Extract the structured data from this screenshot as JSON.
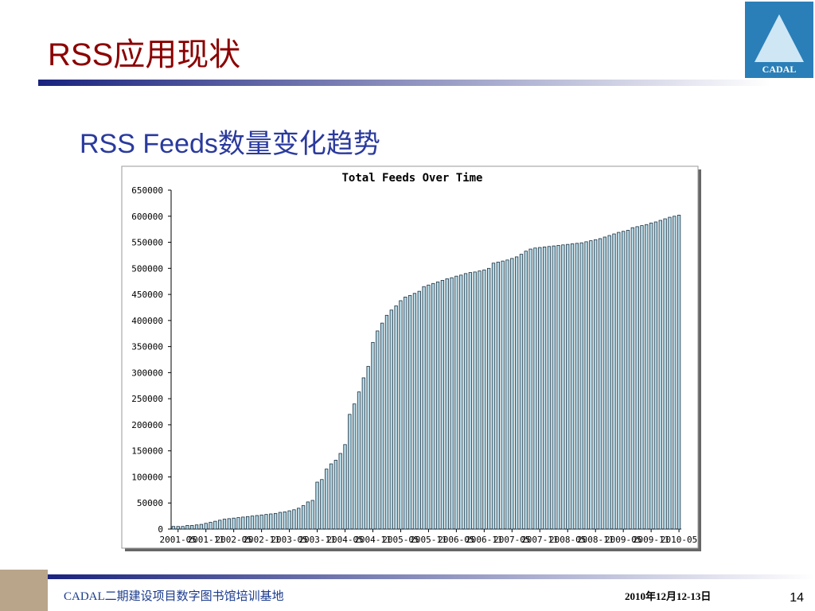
{
  "slide": {
    "title": "RSS应用现状",
    "subtitle": "RSS Feeds数量变化趋势",
    "logo": "CADAL",
    "footer": "CADAL二期建设项目数字图书馆培训基地",
    "date": "2010年12月12-13日",
    "page": "14"
  },
  "chart_data": {
    "type": "bar",
    "title": "Total Feeds Over Time",
    "categories": [
      null,
      "2001-05",
      null,
      null,
      null,
      null,
      null,
      "2001-11",
      null,
      null,
      null,
      null,
      null,
      "2002-05",
      null,
      null,
      null,
      null,
      null,
      "2002-11",
      null,
      null,
      null,
      null,
      null,
      "2003-05",
      null,
      null,
      null,
      null,
      null,
      "2003-11",
      null,
      null,
      null,
      null,
      null,
      "2004-05",
      null,
      null,
      null,
      null,
      null,
      "2004-11",
      null,
      null,
      null,
      null,
      null,
      "2005-05",
      null,
      null,
      null,
      null,
      null,
      "2005-11",
      null,
      null,
      null,
      null,
      null,
      "2006-05",
      null,
      null,
      null,
      null,
      null,
      "2006-11",
      null,
      null,
      null,
      null,
      null,
      "2007-05",
      null,
      null,
      null,
      null,
      null,
      "2007-11",
      null,
      null,
      null,
      null,
      null,
      "2008-05",
      null,
      null,
      null,
      null,
      null,
      "2008-11",
      null,
      null,
      null,
      null,
      null,
      "2009-05",
      null,
      null,
      null,
      null,
      null,
      "2009-11",
      null,
      null,
      null,
      null,
      null,
      "2010-05"
    ],
    "values": [
      5000,
      5000,
      5000,
      7000,
      7000,
      8000,
      9000,
      11000,
      13000,
      15000,
      17000,
      19000,
      20000,
      21000,
      22000,
      23000,
      24000,
      25000,
      26000,
      27000,
      28000,
      29000,
      30000,
      32000,
      33000,
      35000,
      37000,
      40000,
      45000,
      52000,
      55000,
      90000,
      95000,
      115000,
      125000,
      132000,
      145000,
      162000,
      220000,
      240000,
      263000,
      290000,
      312000,
      358000,
      380000,
      395000,
      410000,
      420000,
      428000,
      438000,
      445000,
      448000,
      452000,
      456000,
      465000,
      468000,
      471000,
      474000,
      477000,
      480000,
      482000,
      485000,
      487000,
      490000,
      492000,
      493000,
      495000,
      497000,
      500000,
      510000,
      512000,
      514000,
      516000,
      519000,
      522000,
      527000,
      533000,
      537000,
      539000,
      540000,
      541000,
      542000,
      543000,
      544000,
      545000,
      546000,
      547000,
      548000,
      549000,
      551000,
      553000,
      555000,
      557000,
      560000,
      563000,
      566000,
      569000,
      571000,
      573000,
      578000,
      580000,
      582000,
      584000,
      587000,
      589000,
      592000,
      595000,
      598000,
      600000,
      602000
    ],
    "color": "#b4d8e6",
    "ylim": [
      0,
      650000
    ],
    "yticks": [
      0,
      50000,
      100000,
      150000,
      200000,
      250000,
      300000,
      350000,
      400000,
      450000,
      500000,
      550000,
      600000,
      650000
    ]
  }
}
